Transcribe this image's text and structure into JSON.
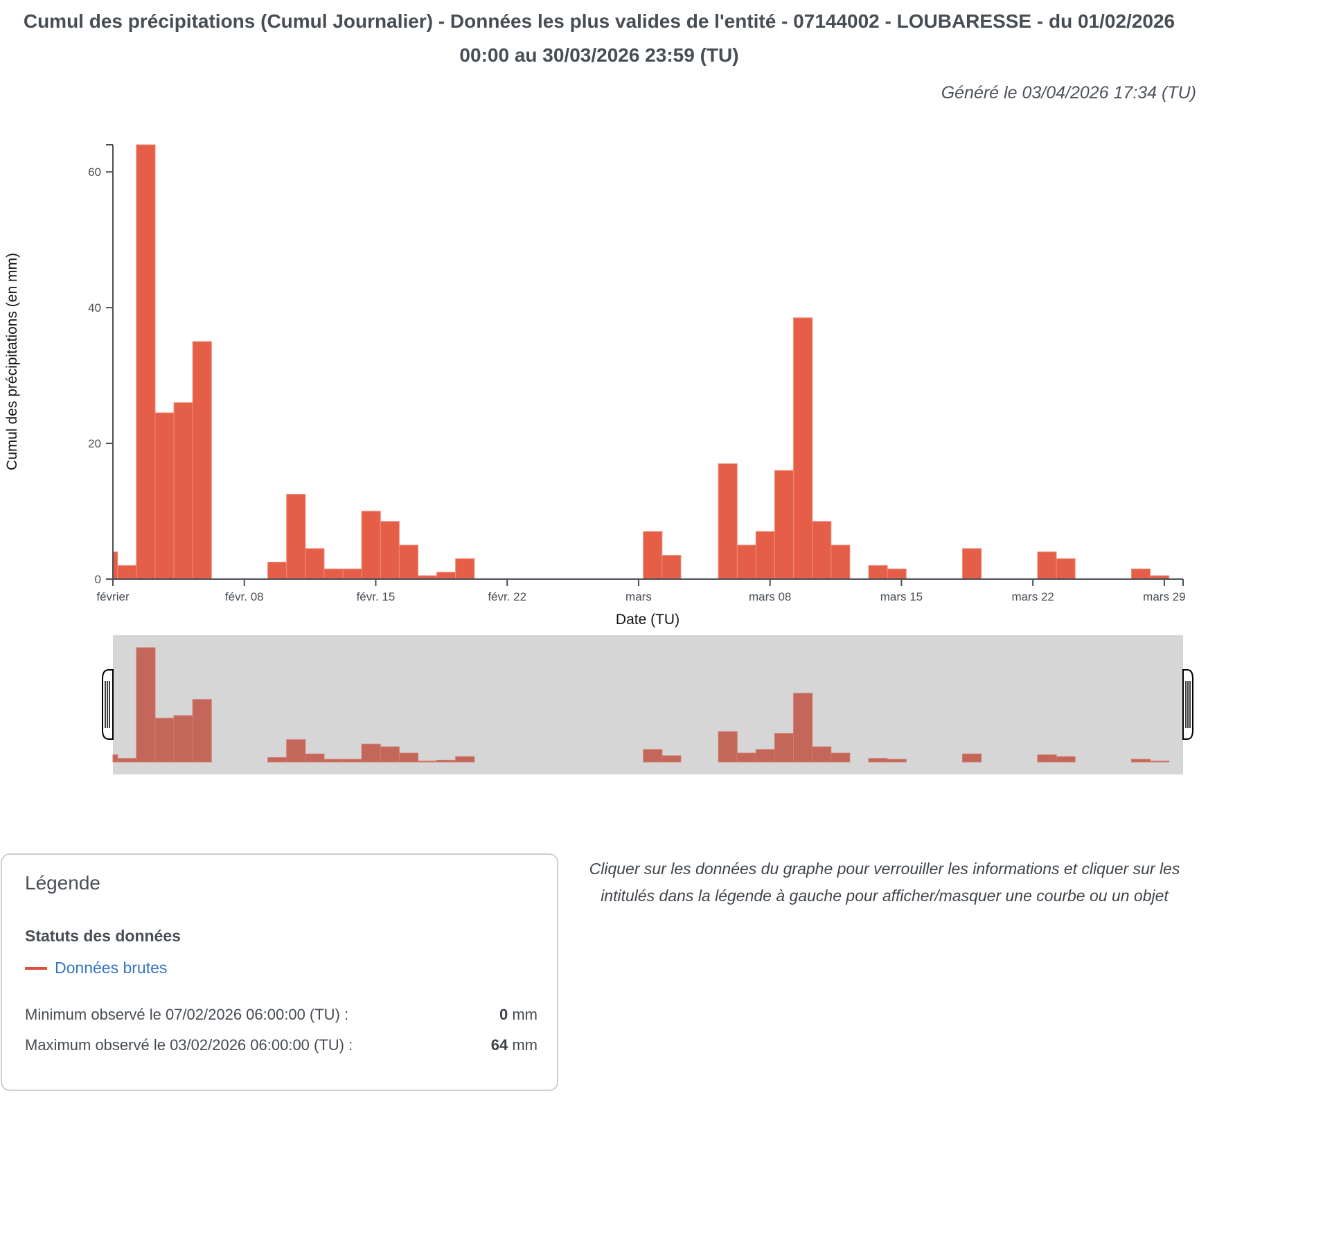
{
  "header": {
    "title": "Cumul des précipitations (Cumul Journalier) - Données les plus valides de l'entité - 07144002 - LOUBARESSE - du 01/02/2026 00:00 au 30/03/2026 23:59 (TU)",
    "generated": "Généré le 03/04/2026 17:34 (TU)"
  },
  "chart_data": {
    "type": "bar",
    "title": "Cumul des précipitations (Cumul Journalier)",
    "xlabel": "Date (TU)",
    "ylabel": "Cumul des précipitations (en mm)",
    "ylim": [
      0,
      64
    ],
    "yticks": [
      0,
      20,
      40,
      60
    ],
    "xlim": [
      "2026-02-01T00:00",
      "2026-03-30T00:00"
    ],
    "xticks": [
      {
        "date": "2026-02-01",
        "label": "février"
      },
      {
        "date": "2026-02-08",
        "label": "févr. 08"
      },
      {
        "date": "2026-02-15",
        "label": "févr. 15"
      },
      {
        "date": "2026-02-22",
        "label": "févr. 22"
      },
      {
        "date": "2026-03-01",
        "label": "mars"
      },
      {
        "date": "2026-03-08",
        "label": "mars 08"
      },
      {
        "date": "2026-03-15",
        "label": "mars 15"
      },
      {
        "date": "2026-03-22",
        "label": "mars 22"
      },
      {
        "date": "2026-03-29",
        "label": "mars 29"
      }
    ],
    "bar_period_end_hour": 6,
    "grid": false,
    "color": "#e55e48",
    "navigator_color": "#c4675a",
    "series": [
      {
        "name": "Données brutes",
        "x": [
          "2026-02-01",
          "2026-02-02",
          "2026-02-03",
          "2026-02-04",
          "2026-02-05",
          "2026-02-06",
          "2026-02-07",
          "2026-02-08",
          "2026-02-09",
          "2026-02-10",
          "2026-02-11",
          "2026-02-12",
          "2026-02-13",
          "2026-02-14",
          "2026-02-15",
          "2026-02-16",
          "2026-02-17",
          "2026-02-18",
          "2026-02-19",
          "2026-02-20",
          "2026-02-21",
          "2026-02-22",
          "2026-02-23",
          "2026-02-24",
          "2026-02-25",
          "2026-02-26",
          "2026-02-27",
          "2026-02-28",
          "2026-03-01",
          "2026-03-02",
          "2026-03-03",
          "2026-03-04",
          "2026-03-05",
          "2026-03-06",
          "2026-03-07",
          "2026-03-08",
          "2026-03-09",
          "2026-03-10",
          "2026-03-11",
          "2026-03-12",
          "2026-03-13",
          "2026-03-14",
          "2026-03-15",
          "2026-03-16",
          "2026-03-17",
          "2026-03-18",
          "2026-03-19",
          "2026-03-20",
          "2026-03-21",
          "2026-03-22",
          "2026-03-23",
          "2026-03-24",
          "2026-03-25",
          "2026-03-26",
          "2026-03-27",
          "2026-03-28",
          "2026-03-29"
        ],
        "values": [
          4,
          2,
          64,
          24.5,
          26,
          35,
          0,
          0,
          0,
          2.5,
          12.5,
          4.5,
          1.5,
          1.5,
          10,
          8.5,
          5,
          0.5,
          1,
          3,
          0,
          0,
          0,
          0,
          0,
          0,
          0,
          0,
          0,
          7,
          3.5,
          0,
          0,
          17,
          5,
          7,
          16,
          38.5,
          8.5,
          5,
          0,
          2,
          1.5,
          0,
          0,
          0,
          4.5,
          0,
          0,
          0,
          4,
          3,
          0,
          0,
          0,
          1.5,
          0.5
        ]
      }
    ]
  },
  "legend": {
    "title": "Légende",
    "status_title": "Statuts des données",
    "series_label": "Données brutes",
    "series_color": "#e0503a",
    "min_label": "Minimum observé le 07/02/2026 06:00:00 (TU) :",
    "min_value": "0",
    "max_label": "Maximum observé le 03/02/2026 06:00:00 (TU) :",
    "max_value": "64",
    "unit": "mm"
  },
  "instructions": "Cliquer sur les données du graphe pour verrouiller les informations et cliquer sur les intitulés dans la légende à gauche pour afficher/masquer une courbe ou un objet"
}
